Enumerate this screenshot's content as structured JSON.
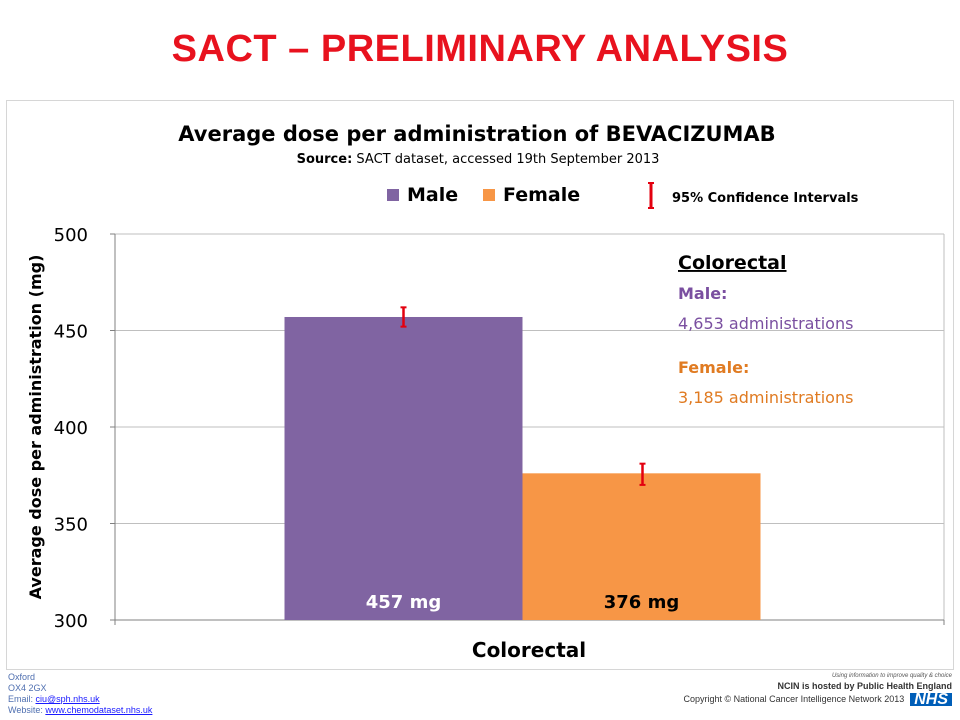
{
  "slide": {
    "title": "SACT – PRELIMINARY ANALYSIS"
  },
  "chart_data": {
    "type": "bar",
    "title": "Average dose per administration of BEVACIZUMAB",
    "subtitle_bold": "Source:",
    "subtitle": " SACT dataset, accessed 19th September 2013",
    "xlabel": "Colorectal",
    "ylabel": "Average dose per administration (mg)",
    "ylim": [
      300,
      500
    ],
    "yticks": [
      "300",
      "350",
      "400",
      "450",
      "500"
    ],
    "grid": true,
    "categories": [
      "Colorectal"
    ],
    "series": [
      {
        "name": "Male",
        "values": [
          457
        ],
        "ci": [
          [
            452,
            462
          ]
        ],
        "color": "#8064a2",
        "label": "457 mg",
        "label_color": "#ffffff"
      },
      {
        "name": "Female",
        "values": [
          376
        ],
        "ci": [
          [
            370,
            381
          ]
        ],
        "color": "#f79646",
        "label": "376 mg",
        "label_color": "#000000"
      }
    ],
    "legend": {
      "position": "top",
      "ci_label": "95% Confidence Intervals",
      "ci_color": "#e3000f"
    },
    "annotation": {
      "heading": "Colorectal",
      "male_label": "Male:",
      "male_text": "4,653 administrations",
      "female_label": "Female:",
      "female_text": "3,185 administrations",
      "male_color": "#7a4fa0",
      "female_color": "#e07b22"
    }
  },
  "footer": {
    "address_line1": "Oxford",
    "address_line2": "OX4 2GX",
    "email_label": "Email: ",
    "email": "ciu@sph.nhs.uk",
    "website_label": "Website: ",
    "website": "www.chemodataset.nhs.uk",
    "tagline": "Using information to improve quality & choice",
    "hosted": "NCIN is hosted by Public Health England",
    "copyright": "Copyright © National Cancer Intelligence Network 2013",
    "logo": "NHS"
  }
}
